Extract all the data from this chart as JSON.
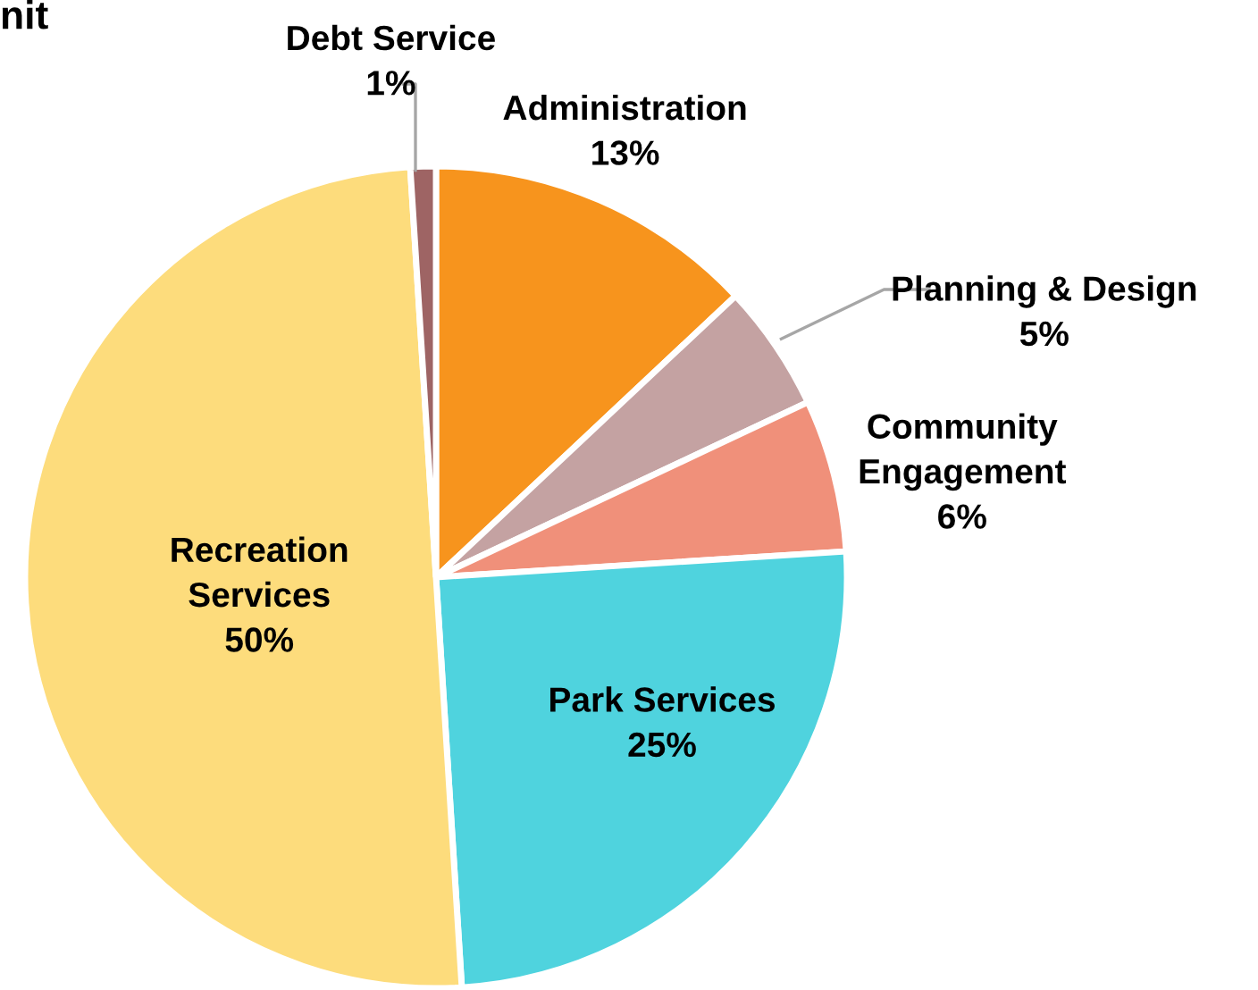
{
  "chart_data": {
    "type": "pie",
    "title": "nit",
    "categories": [
      "Administration",
      "Planning & Design",
      "Community\nEngagement",
      "Park Services",
      "Recreation\nServices",
      "Debt Service"
    ],
    "values": [
      13,
      5,
      6,
      25,
      50,
      1
    ],
    "colors": [
      "#f7941d",
      "#c4a2a2",
      "#f0907a",
      "#4fd3de",
      "#fddc7c",
      "#9e6464"
    ],
    "value_labels": [
      "13%",
      "5%",
      "6%",
      "25%",
      "50%",
      "1%"
    ],
    "legend": false
  }
}
